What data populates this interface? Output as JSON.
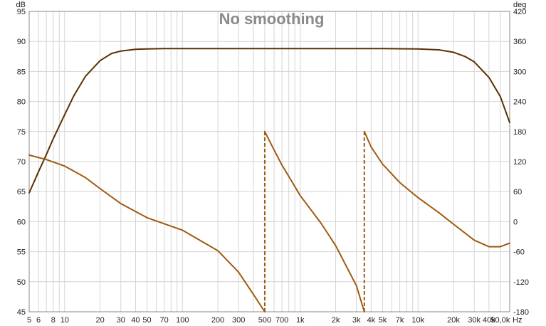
{
  "chart_data": {
    "type": "line",
    "title": "No smoothing",
    "x_unit": "Hz",
    "y_left_unit": "dB",
    "y_right_unit": "deg",
    "x_scale": "log",
    "xlim": [
      5,
      60000
    ],
    "ylim_left": [
      45,
      95
    ],
    "ylim_right": [
      -180,
      420
    ],
    "x_ticks": [
      {
        "v": 5,
        "label": "5"
      },
      {
        "v": 6,
        "label": "6"
      },
      {
        "v": 8,
        "label": "8"
      },
      {
        "v": 10,
        "label": "10"
      },
      {
        "v": 20,
        "label": "20"
      },
      {
        "v": 30,
        "label": "30"
      },
      {
        "v": 40,
        "label": "40"
      },
      {
        "v": 50,
        "label": "50"
      },
      {
        "v": 70,
        "label": "70"
      },
      {
        "v": 100,
        "label": "100"
      },
      {
        "v": 200,
        "label": "200"
      },
      {
        "v": 300,
        "label": "300"
      },
      {
        "v": 500,
        "label": "500"
      },
      {
        "v": 700,
        "label": "700"
      },
      {
        "v": 1000,
        "label": "1k"
      },
      {
        "v": 2000,
        "label": "2k"
      },
      {
        "v": 3000,
        "label": "3k"
      },
      {
        "v": 4000,
        "label": "4k"
      },
      {
        "v": 5000,
        "label": "5k"
      },
      {
        "v": 7000,
        "label": "7k"
      },
      {
        "v": 10000,
        "label": "10k"
      },
      {
        "v": 20000,
        "label": "20k"
      },
      {
        "v": 30000,
        "label": "30k"
      },
      {
        "v": 40000,
        "label": "40k"
      },
      {
        "v": 50000,
        "label": "50,0k"
      }
    ],
    "y_left_ticks": [
      95,
      90,
      85,
      80,
      75,
      70,
      65,
      60,
      55,
      50,
      45
    ],
    "y_right_ticks": [
      420,
      360,
      300,
      240,
      180,
      120,
      60,
      0,
      -60,
      -120,
      -180
    ],
    "grid": true,
    "colors": {
      "magnitude": "#5a3000",
      "phase": "#a05a10",
      "grid": "#d4d4d4",
      "border": "#888888",
      "title": "#8a8a8a"
    },
    "series": [
      {
        "axis": "left",
        "x": [
          5,
          6,
          7,
          8,
          10,
          12,
          15,
          20,
          25,
          30,
          40,
          50,
          70,
          100,
          200,
          500,
          1000,
          2000,
          5000,
          10000,
          15000,
          20000,
          25000,
          30000,
          40000,
          50000,
          60000
        ],
        "y": [
          64.8,
          68.3,
          71.2,
          73.8,
          77.8,
          81.0,
          84.2,
          86.8,
          88.0,
          88.4,
          88.7,
          88.75,
          88.8,
          88.8,
          88.8,
          88.8,
          88.8,
          88.8,
          88.8,
          88.75,
          88.6,
          88.2,
          87.5,
          86.6,
          84.0,
          80.8,
          76.5
        ]
      },
      {
        "axis": "right",
        "x": [
          5,
          7,
          10,
          15,
          20,
          30,
          50,
          100,
          200,
          300,
          400,
          500
        ],
        "y": [
          133,
          124,
          111,
          88,
          66,
          36,
          8,
          -17,
          -58,
          -101,
          -145,
          -180
        ]
      },
      {
        "axis": "right",
        "x": [
          500,
          600,
          700,
          1000,
          1500,
          2000,
          3000,
          3500
        ],
        "y": [
          180,
          143,
          113,
          52,
          -3,
          -48,
          -128,
          -180
        ]
      },
      {
        "axis": "right",
        "x": [
          3500,
          4000,
          5000,
          7000,
          10000,
          15000,
          20000,
          30000,
          40000,
          50000,
          60000
        ],
        "y": [
          180,
          149,
          115,
          78,
          48,
          18,
          -5,
          -37,
          -50,
          -50,
          -43
        ]
      }
    ],
    "phase_wraps": [
      500,
      3500
    ]
  }
}
